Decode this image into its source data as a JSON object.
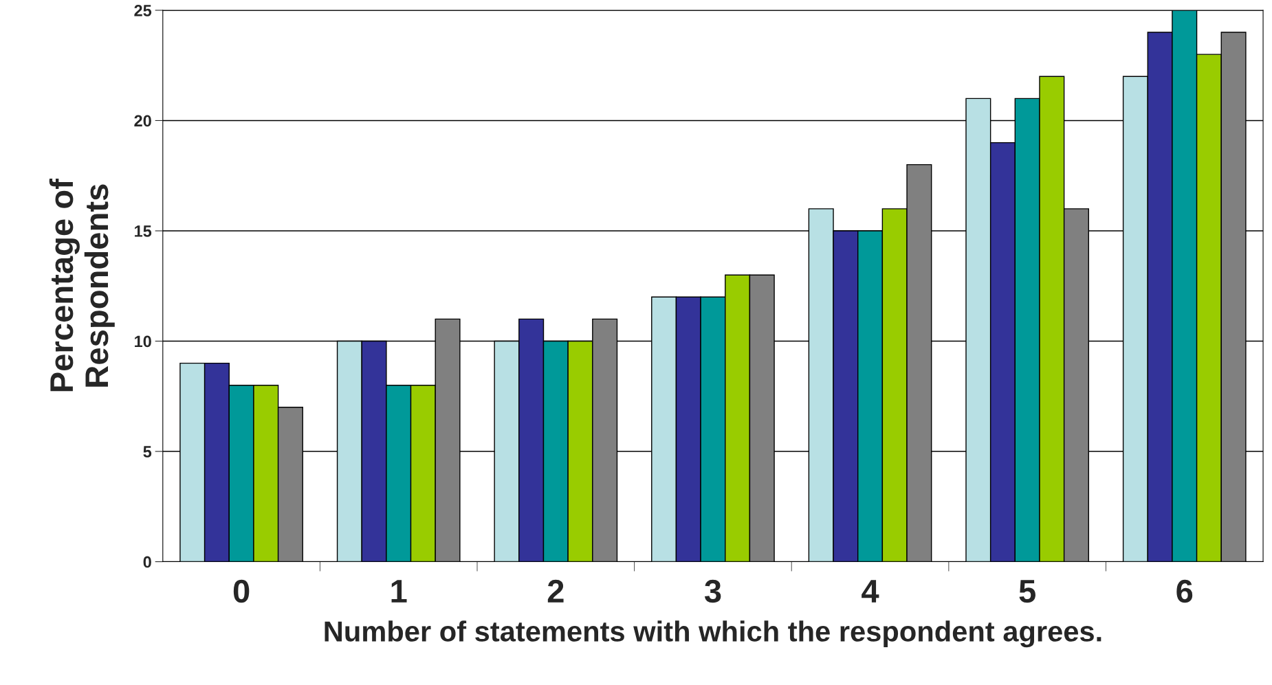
{
  "chart_data": {
    "type": "bar",
    "xlabel": "Number of statements with which the respondent agrees.",
    "ylabel": "Percentage of\nRespondents",
    "categories": [
      "0",
      "1",
      "2",
      "3",
      "4",
      "5",
      "6"
    ],
    "series": [
      {
        "color": "#b8e0e4",
        "values": [
          9,
          10,
          10,
          12,
          16,
          21,
          22
        ]
      },
      {
        "color": "#333399",
        "values": [
          9,
          10,
          11,
          12,
          15,
          19,
          24
        ]
      },
      {
        "color": "#009999",
        "values": [
          8,
          8,
          10,
          12,
          15,
          21,
          25
        ]
      },
      {
        "color": "#99cc00",
        "values": [
          8,
          8,
          10,
          13,
          16,
          22,
          23
        ]
      },
      {
        "color": "#808080",
        "values": [
          7,
          11,
          11,
          13,
          18,
          16,
          24
        ]
      }
    ],
    "ylim": [
      0,
      25
    ],
    "yticks": [
      0,
      5,
      10,
      15,
      20,
      25
    ],
    "grid": "y",
    "legend": false
  }
}
